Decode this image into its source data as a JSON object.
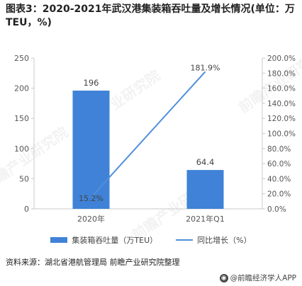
{
  "title": "图表3：2020-2021年武汉港集装箱吞吐量及增长情况(单位：万TEU，%)",
  "watermark": "前瞻产业研究院",
  "source": "资料来源：湖北省港航管理局 前瞻产业研究院整理",
  "credit": "@前瞻经济学人APP",
  "colors": {
    "bar": "#3f82d7",
    "line": "#4e8fd9",
    "axis": "#c8c8c8"
  },
  "chart_data": {
    "type": "bar",
    "categories": [
      "2020年",
      "2021年Q1"
    ],
    "series": [
      {
        "name": "集装箱吞吐量（万TEU）",
        "type": "bar",
        "axis": "left",
        "values": [
          196,
          64.4
        ],
        "labels": [
          "196",
          "64.4"
        ]
      },
      {
        "name": "同比增长（%）",
        "type": "line",
        "axis": "right",
        "values": [
          15.2,
          181.9
        ],
        "labels": [
          "15.2%",
          "181.9%"
        ]
      }
    ],
    "y_left": {
      "ylim": [
        0,
        250
      ],
      "ticks": [
        "0",
        "50",
        "100",
        "150",
        "200",
        "250"
      ]
    },
    "y_right": {
      "ylim": [
        0,
        200
      ],
      "ticks": [
        "0.0%",
        "20.0%",
        "40.0%",
        "60.0%",
        "80.0%",
        "100.0%",
        "120.0%",
        "140.0%",
        "160.0%",
        "180.0%",
        "200.0%"
      ]
    },
    "grid": false,
    "legend": "bottom"
  }
}
